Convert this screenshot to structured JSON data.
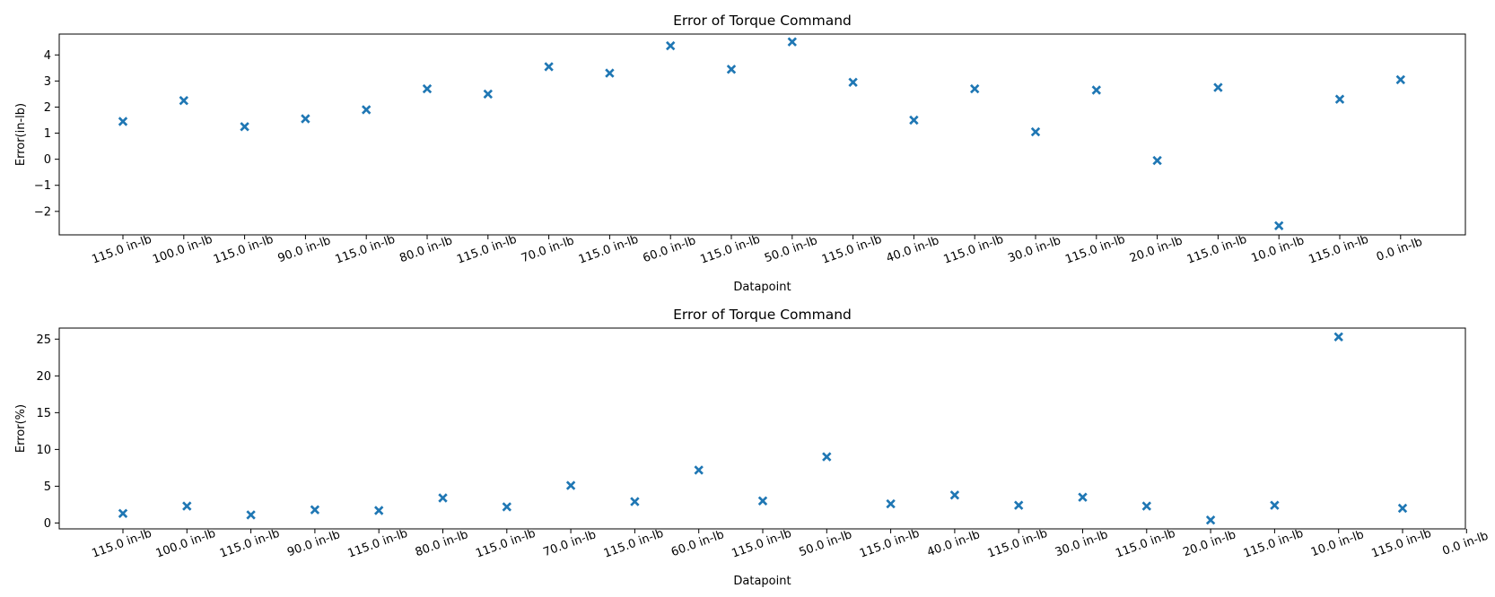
{
  "chart_data": [
    {
      "type": "scatter",
      "title": "Error of Torque Command",
      "xlabel": "Datapoint",
      "ylabel": "Error(in-lb)",
      "categories": [
        "115.0 in-lb",
        "100.0 in-lb",
        "115.0 in-lb",
        "90.0 in-lb",
        "115.0 in-lb",
        "80.0 in-lb",
        "115.0 in-lb",
        "70.0 in-lb",
        "115.0 in-lb",
        "60.0 in-lb",
        "115.0 in-lb",
        "50.0 in-lb",
        "115.0 in-lb",
        "40.0 in-lb",
        "115.0 in-lb",
        "30.0 in-lb",
        "115.0 in-lb",
        "20.0 in-lb",
        "115.0 in-lb",
        "10.0 in-lb",
        "115.0 in-lb",
        "0.0 in-lb"
      ],
      "values": [
        1.45,
        2.25,
        1.25,
        1.55,
        1.9,
        2.7,
        2.5,
        3.55,
        3.3,
        4.35,
        3.45,
        4.5,
        2.95,
        1.5,
        2.7,
        1.05,
        2.65,
        -0.05,
        2.75,
        -2.55,
        2.3,
        3.05
      ],
      "yticks": [
        -2,
        -1,
        0,
        1,
        2,
        3,
        4
      ],
      "ytick_labels": [
        "−2",
        "−1",
        "0",
        "1",
        "2",
        "3",
        "4"
      ],
      "ylim": [
        -2.9,
        4.8
      ],
      "marker": "X",
      "color": "#1f77b4",
      "grid": false,
      "legend": "none"
    },
    {
      "type": "scatter",
      "title": "Error of Torque Command",
      "xlabel": "Datapoint",
      "ylabel": "Error(%)",
      "categories": [
        "115.0 in-lb",
        "100.0 in-lb",
        "115.0 in-lb",
        "90.0 in-lb",
        "115.0 in-lb",
        "80.0 in-lb",
        "115.0 in-lb",
        "70.0 in-lb",
        "115.0 in-lb",
        "60.0 in-lb",
        "115.0 in-lb",
        "50.0 in-lb",
        "115.0 in-lb",
        "40.0 in-lb",
        "115.0 in-lb",
        "30.0 in-lb",
        "115.0 in-lb",
        "20.0 in-lb",
        "115.0 in-lb",
        "10.0 in-lb",
        "115.0 in-lb",
        "0.0 in-lb"
      ],
      "values": [
        1.3,
        2.3,
        1.1,
        1.8,
        1.7,
        3.4,
        2.2,
        5.1,
        2.9,
        7.2,
        3.0,
        9.0,
        2.6,
        3.8,
        2.4,
        3.5,
        2.3,
        0.4,
        2.4,
        25.3,
        2.0,
        null
      ],
      "yticks": [
        0,
        5,
        10,
        15,
        20,
        25
      ],
      "ytick_labels": [
        "0",
        "5",
        "10",
        "15",
        "20",
        "25"
      ],
      "ylim": [
        -0.8,
        26.5
      ],
      "marker": "X",
      "color": "#1f77b4",
      "grid": false,
      "legend": "none"
    }
  ]
}
